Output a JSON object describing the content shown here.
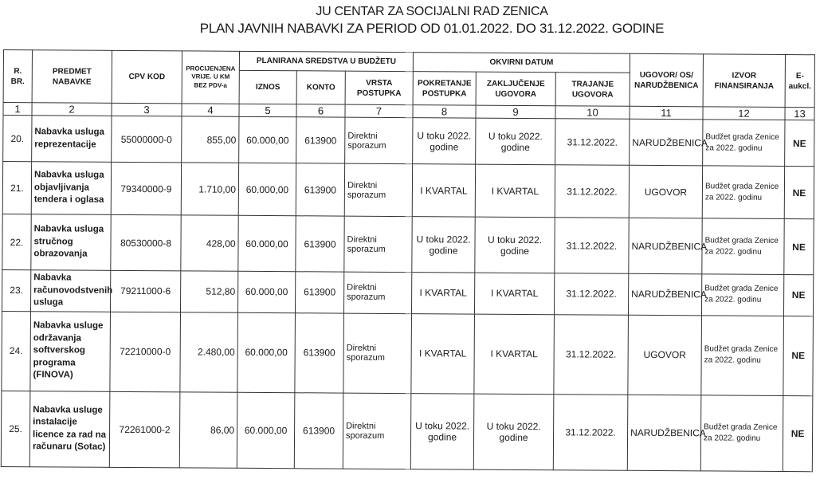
{
  "title_line1": "JU CENTAR ZA SOCIJALNI RAD ZENICA",
  "title_line2": "PLAN JAVNIH NABAVKI ZA PERIOD OD 01.01.2022. DO 31.12.2022. GODINE",
  "headers": {
    "rbr": "R. BR.",
    "predmet": "PREDMET NABAVKE",
    "cpv": "CPV KOD",
    "procjena": "PROCIJENJENA VRIJE. U KM BEZ PDV-a",
    "planirana": "PLANIRANA SREDSTVA U BUDŽETU",
    "iznos": "IZNOS",
    "konto": "KONTO",
    "vrsta": "VRSTA POSTUPKA",
    "okvirni": "OKVIRNI DATUM",
    "pokretanje": "POKRETANJE POSTUPKA",
    "zakljucenje": "ZAKLJUČENJE UGOVORA",
    "trajanje": "TRAJANJE UGOVORA",
    "ugovor": "UGOVOR/ OS/ NARUDŽBENICA",
    "izvor": "IZVOR FINANSIRANJA",
    "eaukc": "E-aukcl."
  },
  "column_numbers": [
    "1",
    "2",
    "3",
    "4",
    "5",
    "6",
    "7",
    "8",
    "9",
    "10",
    "11",
    "12",
    "13"
  ],
  "rows": [
    {
      "rbr": "20.",
      "predmet": "Nabavka usluga reprezentacije",
      "cpv": "55000000-0",
      "procjena": "855,00",
      "iznos": "60.000,00",
      "konto": "613900",
      "vrsta": "Direktni sporazum",
      "pokretanje": "U toku 2022. godine",
      "zakljucenje": "U toku 2022. godine",
      "trajanje": "31.12.2022.",
      "ugovor": "NARUDŽBENICA",
      "izvor": "Budžet grada Zenice za 2022. godinu",
      "eaukc": "NE"
    },
    {
      "rbr": "21.",
      "predmet": "Nabavka usluga objavljivanja tendera i oglasa",
      "cpv": "79340000-9",
      "procjena": "1.710,00",
      "iznos": "60.000,00",
      "konto": "613900",
      "vrsta": "Direktni sporazum",
      "pokretanje": "I KVARTAL",
      "zakljucenje": "I KVARTAL",
      "trajanje": "31.12.2022.",
      "ugovor": "UGOVOR",
      "izvor": "Budžet grada Zenice za 2022. godinu",
      "eaukc": "NE"
    },
    {
      "rbr": "22.",
      "predmet": "Nabavka usluga stručnog obrazovanja",
      "cpv": "80530000-8",
      "procjena": "428,00",
      "iznos": "60.000,00",
      "konto": "613900",
      "vrsta": "Direktni sporazum",
      "pokretanje": "U toku 2022. godine",
      "zakljucenje": "U toku 2022. godine",
      "trajanje": "31.12.2022.",
      "ugovor": "NARUDŽBENICA",
      "izvor": "Budžet grada Zenice za 2022. godinu",
      "eaukc": "NE"
    },
    {
      "rbr": "23.",
      "predmet": "Nabavka računovodstvenih usluga",
      "cpv": "79211000-6",
      "procjena": "512,80",
      "iznos": "60.000,00",
      "konto": "613900",
      "vrsta": "Direktni sporazum",
      "pokretanje": "I KVARTAL",
      "zakljucenje": "I KVARTAL",
      "trajanje": "31.12.2022.",
      "ugovor": "NARUDŽBENICA",
      "izvor": "Budžet grada Zenice za 2022. godinu",
      "eaukc": "NE"
    },
    {
      "rbr": "24.",
      "predmet": "Nabavka usluge održavanja softverskog programa (FINOVA)",
      "cpv": "72210000-0",
      "procjena": "2.480,00",
      "iznos": "60.000,00",
      "konto": "613900",
      "vrsta": "Direktni sporazum",
      "pokretanje": "I KVARTAL",
      "zakljucenje": "I KVARTAL",
      "trajanje": "31.12.2022.",
      "ugovor": "UGOVOR",
      "izvor": "Budžet grada Zenice za 2022. godinu",
      "eaukc": "NE"
    },
    {
      "rbr": "25.",
      "predmet": "Nabavka usluge instalacije licence za rad na računaru (Sotac)",
      "cpv": "72261000-2",
      "procjena": "86,00",
      "iznos": "60.000,00",
      "konto": "613900",
      "vrsta": "Direktni sporazum",
      "pokretanje": "U toku 2022. godine",
      "zakljucenje": "U toku 2022. godine",
      "trajanje": "31.12.2022.",
      "ugovor": "NARUDŽBENICA",
      "izvor": "Budžet grada Zenice za 2022. godinu",
      "eaukc": "NE"
    }
  ]
}
